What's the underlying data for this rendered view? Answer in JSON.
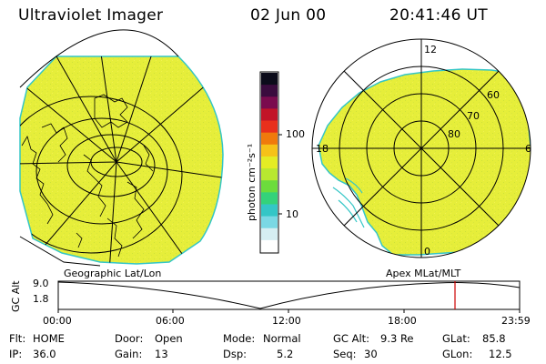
{
  "header": {
    "instrument": "Ultraviolet Imager",
    "date": "02 Jun 00",
    "time": "20:41:46 UT"
  },
  "colorbar": {
    "unit_label": "photon cm⁻²s⁻¹",
    "tick_labels": [
      "100",
      "10"
    ],
    "colors": [
      "#0b0b1a",
      "#3a0b3e",
      "#7a0b4e",
      "#c21428",
      "#e8301c",
      "#f07a0c",
      "#f6c218",
      "#e4ec24",
      "#b8e830",
      "#6cdc3c",
      "#34d27a",
      "#34c6c6",
      "#7ad8e4",
      "#d6eef2",
      "#ffffff"
    ]
  },
  "left_panel": {
    "projection_label": "Geographic Lat/Lon",
    "fill_color": "#e6ee3a"
  },
  "right_panel": {
    "projection_label": "Apex MLat/MLT",
    "mlt_labels": {
      "top": "12",
      "left": "18",
      "right": "6",
      "bottom": "0"
    },
    "lat_labels": [
      "60",
      "70",
      "80"
    ],
    "fill_color": "#e6ee3a"
  },
  "altitude_plot": {
    "ylabel": "GC Alt",
    "y_ticks": [
      "9.0",
      "1.8"
    ],
    "x_ticks": [
      "00:00",
      "06:00",
      "12:00",
      "18:00",
      "23:59"
    ],
    "current_time_marker_color": "#cc0000"
  },
  "status": {
    "flt_label": "Flt:",
    "flt_value": "HOME",
    "ip_label": "IP:",
    "ip_value": "36.0",
    "door_label": "Door:",
    "door_value": "Open",
    "gain_label": "Gain:",
    "gain_value": "13",
    "mode_label": "Mode:",
    "mode_value": "Normal",
    "dsp_label": "Dsp:",
    "dsp_value": "5.2",
    "gcalt_label": "GC Alt:",
    "gcalt_value": "9.3 Re",
    "seq_label": "Seq:",
    "seq_value": "30",
    "glat_label": "GLat:",
    "glat_value": "85.8",
    "glon_label": "GLon:",
    "glon_value": "12.5"
  }
}
